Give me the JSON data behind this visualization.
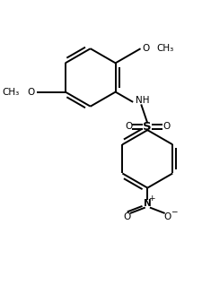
{
  "background": "#ffffff",
  "line_color": "#000000",
  "lw": 1.4,
  "fs": 7.5,
  "figsize": [
    2.26,
    3.18
  ],
  "dpi": 100,
  "xlim": [
    -2.5,
    3.5
  ],
  "ylim": [
    -4.5,
    3.0
  ]
}
